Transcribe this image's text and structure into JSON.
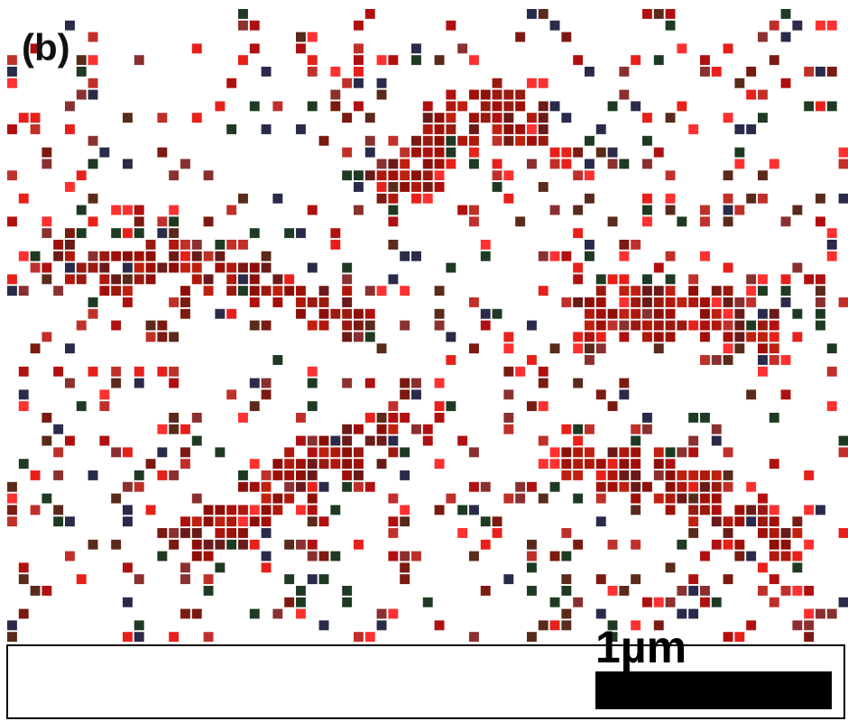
{
  "panel_label": "(b)",
  "scale_bar_label": "1µm"
}
